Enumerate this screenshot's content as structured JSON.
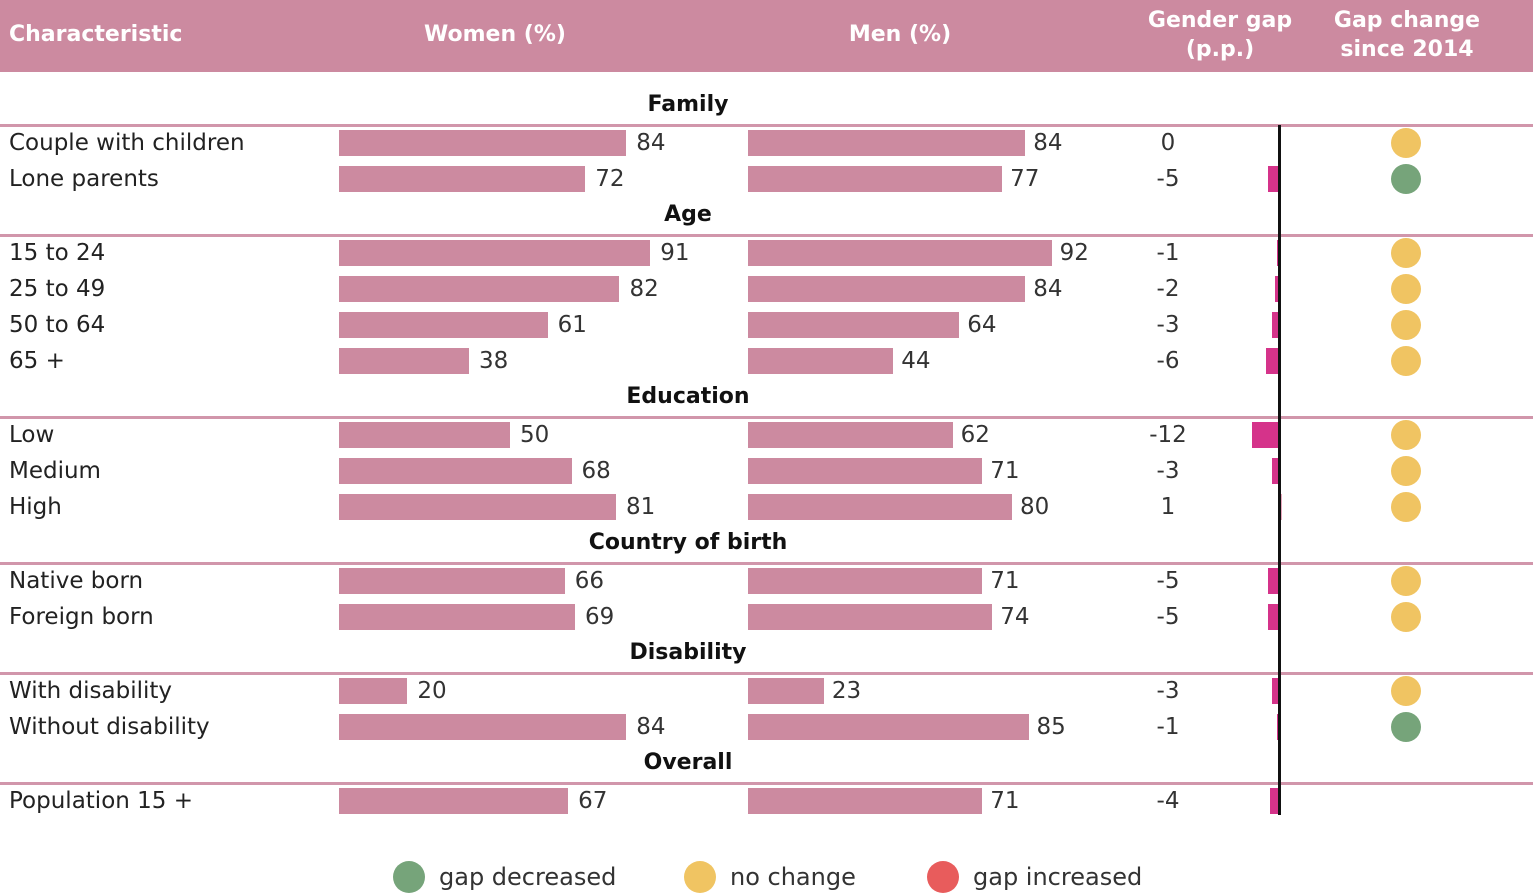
{
  "header": {
    "characteristic": "Characteristic",
    "women": "Women (%)",
    "men": "Men (%)",
    "gap_line1": "Gender gap",
    "gap_line2": "(p.p.)",
    "change_line1": "Gap change",
    "change_line2": "since 2014"
  },
  "colors": {
    "header": "#cc8aa0",
    "bar": "#cc8aa0",
    "gap_negative": "#d5338a",
    "gap_positive": "#e8a7bd",
    "decreased": "#76a47a",
    "no_change": "#f0c462",
    "increased": "#e85c5c"
  },
  "chart_data": {
    "type": "table",
    "sections": [
      {
        "title": "Family",
        "rows": [
          {
            "label": "Couple with children",
            "women": 84,
            "men": 84,
            "gap": "0",
            "gap_value": 0,
            "change": "no_change"
          },
          {
            "label": "Lone parents",
            "women": 72,
            "men": 77,
            "gap": "-5",
            "gap_value": -5,
            "change": "decreased"
          }
        ]
      },
      {
        "title": "Age",
        "rows": [
          {
            "label": "15 to 24",
            "women": 91,
            "men": 92,
            "gap": "-1",
            "gap_value": -1,
            "change": "no_change"
          },
          {
            "label": "25 to 49",
            "women": 82,
            "men": 84,
            "gap": "-2",
            "gap_value": -2,
            "change": "no_change"
          },
          {
            "label": "50 to 64",
            "women": 61,
            "men": 64,
            "gap": "-3",
            "gap_value": -3,
            "change": "no_change"
          },
          {
            "label": "65 +",
            "women": 38,
            "men": 44,
            "gap": "-6",
            "gap_value": -6,
            "change": "no_change"
          }
        ]
      },
      {
        "title": "Education",
        "rows": [
          {
            "label": "Low",
            "women": 50,
            "men": 62,
            "gap": "-12",
            "gap_value": -12,
            "change": "no_change"
          },
          {
            "label": "Medium",
            "women": 68,
            "men": 71,
            "gap": "-3",
            "gap_value": -3,
            "change": "no_change"
          },
          {
            "label": "High",
            "women": 81,
            "men": 80,
            "gap": "1",
            "gap_value": 1,
            "change": "no_change"
          }
        ]
      },
      {
        "title": "Country of birth",
        "rows": [
          {
            "label": "Native born",
            "women": 66,
            "men": 71,
            "gap": "-5",
            "gap_value": -5,
            "change": "no_change"
          },
          {
            "label": "Foreign born",
            "women": 69,
            "men": 74,
            "gap": "-5",
            "gap_value": -5,
            "change": "no_change"
          }
        ]
      },
      {
        "title": "Disability",
        "rows": [
          {
            "label": "With disability",
            "women": 20,
            "men": 23,
            "gap": "-3",
            "gap_value": -3,
            "change": "no_change"
          },
          {
            "label": "Without disability",
            "women": 84,
            "men": 85,
            "gap": "-1",
            "gap_value": -1,
            "change": "decreased"
          }
        ]
      },
      {
        "title": "Overall",
        "rows": [
          {
            "label": "Population 15 +",
            "women": 67,
            "men": 71,
            "gap": "-4",
            "gap_value": -4,
            "change": null
          }
        ]
      }
    ]
  },
  "legend": [
    {
      "key": "decreased",
      "label": "gap decreased"
    },
    {
      "key": "no_change",
      "label": "no change"
    },
    {
      "key": "increased",
      "label": "gap increased"
    }
  ]
}
